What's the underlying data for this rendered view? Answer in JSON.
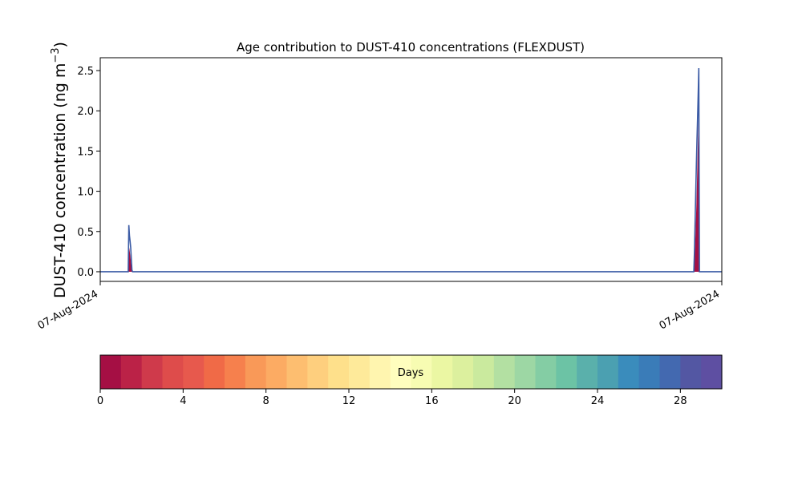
{
  "chart_data": {
    "type": "area",
    "title": "Age contribution to DUST-410 concentrations (FLEXDUST)",
    "ylabel_main": "DUST-410 concentration (ng m",
    "ylabel_sup": "−3",
    "ylabel_close": ")",
    "xlabel": "",
    "xlim": [
      0,
      1
    ],
    "ylim": [
      -0.12,
      2.66
    ],
    "x_tick_labels": [
      {
        "x": 0,
        "label": "07-Aug-2024"
      },
      {
        "x": 1,
        "label": "07-Aug-2024"
      }
    ],
    "y_ticks": [
      {
        "value": 0.0,
        "label": "0.0"
      },
      {
        "value": 0.5,
        "label": "0.5"
      },
      {
        "value": 1.0,
        "label": "1.0"
      },
      {
        "value": 1.5,
        "label": "1.5"
      },
      {
        "value": 2.0,
        "label": "2.0"
      },
      {
        "value": 2.5,
        "label": "2.5"
      }
    ],
    "total_series": {
      "x": [
        0.045,
        0.046,
        0.047,
        0.048,
        0.049,
        0.05,
        0.051,
        0.052,
        0.053,
        0.955,
        0.956,
        0.957,
        0.958,
        0.959,
        0.96,
        0.961,
        0.962,
        0.963,
        0.964
      ],
      "y": [
        0.0,
        0.58,
        0.45,
        0.38,
        0.3,
        0.15,
        0.02,
        0.0,
        0.0,
        0.0,
        0.25,
        0.6,
        0.95,
        1.3,
        1.62,
        1.9,
        2.2,
        2.53,
        0.0
      ]
    },
    "young_series": {
      "x": [
        0.045,
        0.046,
        0.047,
        0.048,
        0.049,
        0.05,
        0.051,
        0.955,
        0.956,
        0.957,
        0.958,
        0.959,
        0.96,
        0.961,
        0.962,
        0.963,
        0.964
      ],
      "y": [
        0.0,
        0.32,
        0.28,
        0.22,
        0.15,
        0.05,
        0.0,
        0.0,
        0.1,
        0.3,
        0.55,
        0.8,
        1.1,
        1.42,
        1.75,
        2.0,
        0.0
      ]
    },
    "colorbar": {
      "label": "Days",
      "range": [
        0,
        30
      ],
      "ticks": [
        0,
        4,
        8,
        12,
        16,
        20,
        24,
        28
      ],
      "colors": [
        "#a50f44",
        "#bb2247",
        "#cf3a4b",
        "#de4c4b",
        "#e7594d",
        "#f06a47",
        "#f6804d",
        "#f99958",
        "#fcab63",
        "#fdbe70",
        "#fecf7e",
        "#fee08b",
        "#feea9a",
        "#fff5af",
        "#fffebe",
        "#f7fcb2",
        "#ebf7a3",
        "#dcf09e",
        "#caea9e",
        "#b3e0a2",
        "#9dd7a4",
        "#84cda4",
        "#6cc3a5",
        "#5ab0ab",
        "#4ba0b1",
        "#3a8cbc",
        "#3a7cb8",
        "#4369b0",
        "#5357a3",
        "#5e4fa2"
      ]
    }
  }
}
